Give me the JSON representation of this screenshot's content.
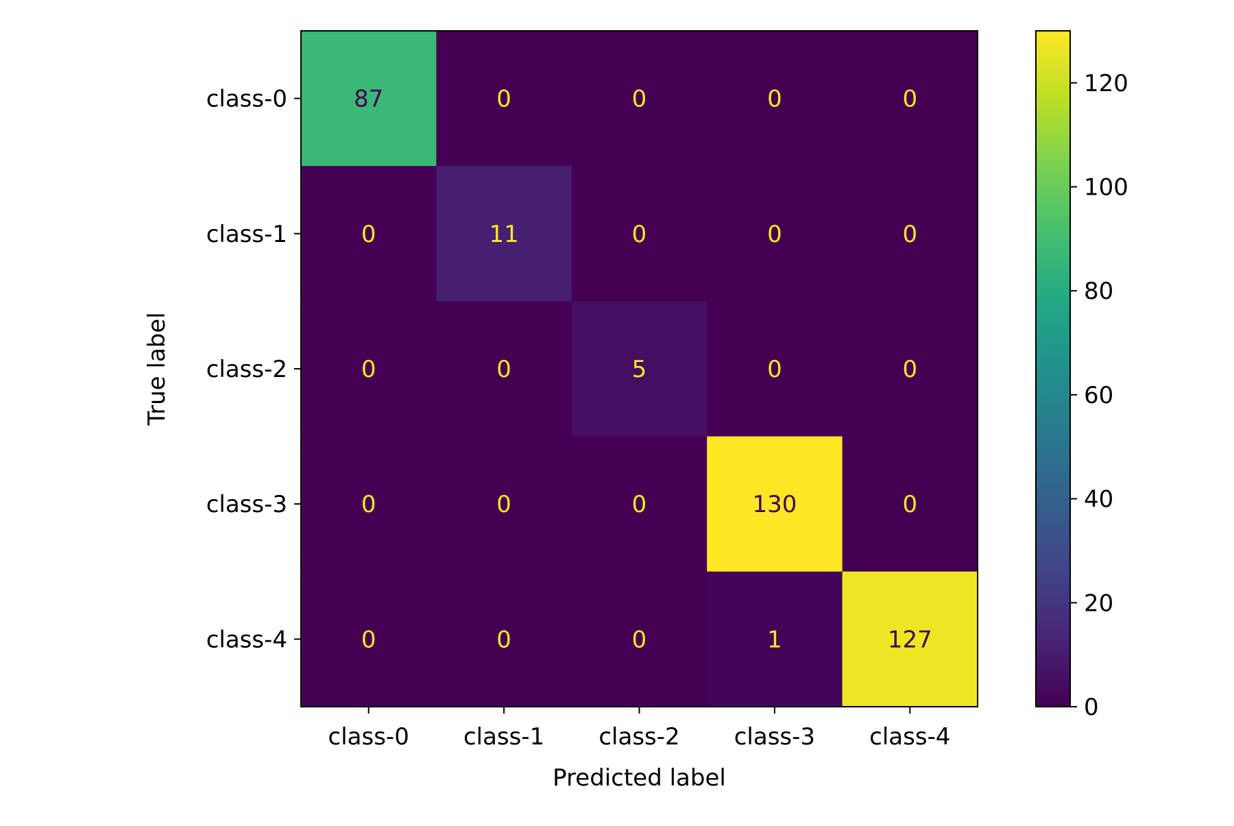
{
  "chart_data": {
    "type": "heatmap",
    "title": "",
    "xlabel": "Predicted label",
    "ylabel": "True label",
    "x_categories": [
      "class-0",
      "class-1",
      "class-2",
      "class-3",
      "class-4"
    ],
    "y_categories": [
      "class-0",
      "class-1",
      "class-2",
      "class-3",
      "class-4"
    ],
    "matrix": [
      [
        87,
        0,
        0,
        0,
        0
      ],
      [
        0,
        11,
        0,
        0,
        0
      ],
      [
        0,
        0,
        5,
        0,
        0
      ],
      [
        0,
        0,
        0,
        130,
        0
      ],
      [
        0,
        0,
        0,
        1,
        127
      ]
    ],
    "colormap": "viridis",
    "colorbar": {
      "range": [
        0,
        130
      ],
      "ticks": [
        0,
        20,
        40,
        60,
        80,
        100,
        120
      ]
    },
    "label_colors": {
      "on_dark": "#fde725",
      "on_light": "#440154"
    },
    "grid": false
  }
}
